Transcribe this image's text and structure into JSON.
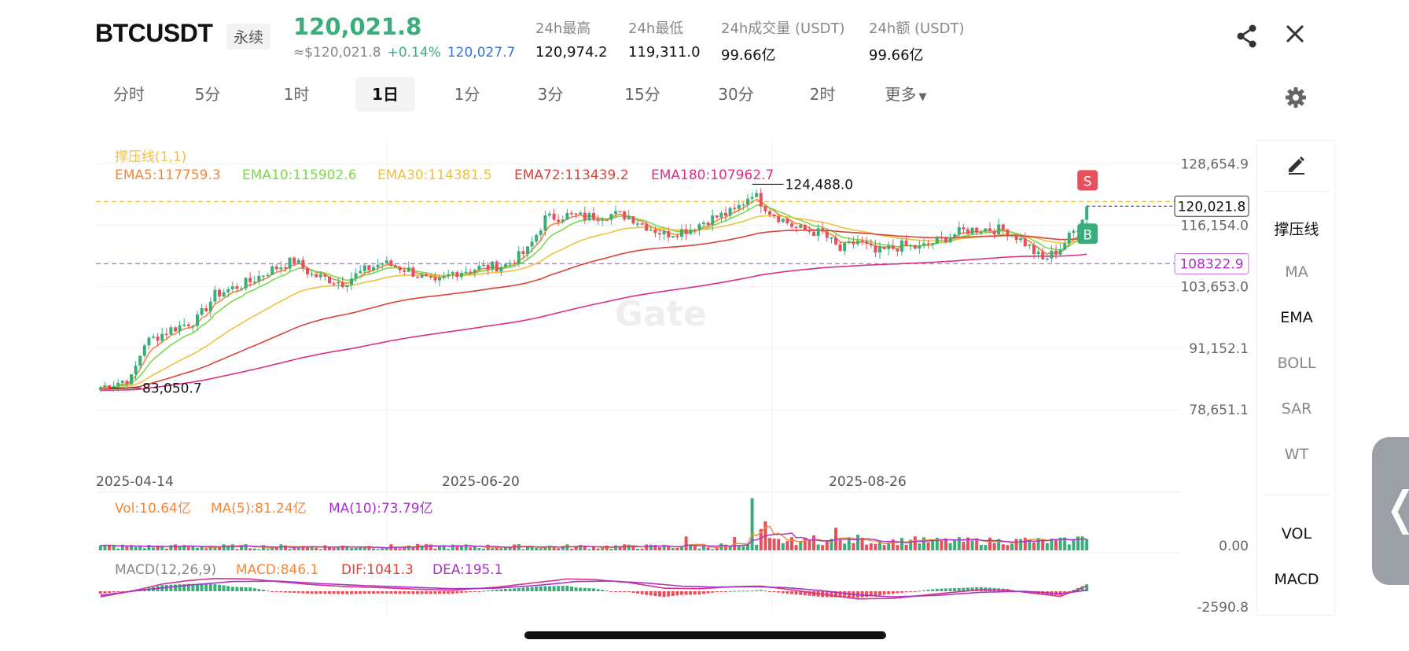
{
  "header": {
    "symbol": "BTCUSDT",
    "contract_type": "永续",
    "last_price": "120,021.8",
    "approx_usd": "≈$120,021.8",
    "change_pct": "+0.14%",
    "mark_price": "120,027.7",
    "stats": [
      {
        "label": "24h最高",
        "value": "120,974.2"
      },
      {
        "label": "24h最低",
        "value": "119,311.0"
      },
      {
        "label": "24h成交量 (USDT)",
        "value": "99.66亿"
      },
      {
        "label": "24h额 (USDT)",
        "value": "99.66亿"
      }
    ]
  },
  "toolbar": {
    "intervals": [
      "分时",
      "5分",
      "1时",
      "1日",
      "1分",
      "3分",
      "15分",
      "30分",
      "2时"
    ],
    "active_interval": "1日",
    "more_label": "更多",
    "icons": [
      "share-icon",
      "close-icon",
      "gear-icon"
    ]
  },
  "side_panel": {
    "items": [
      {
        "label": "撑压线",
        "active": true
      },
      {
        "label": "MA",
        "active": false
      },
      {
        "label": "EMA",
        "active": true
      },
      {
        "label": "BOLL",
        "active": false
      },
      {
        "label": "SAR",
        "active": false
      },
      {
        "label": "WT",
        "active": false
      },
      {
        "label": "VOL",
        "active": true
      },
      {
        "label": "MACD",
        "active": true
      }
    ],
    "edit_icon": "pencil-icon"
  },
  "colors": {
    "up": "#3aae7a",
    "down": "#e8505b",
    "ema5": "#f0883e",
    "ema10": "#7cd94e",
    "ema30": "#f0c040",
    "ema72": "#d9443a",
    "ema180": "#d63384",
    "support_line": "#c96ee8",
    "resistance_line": "#f0c040"
  },
  "chart_data": {
    "type": "candlestick",
    "watermark": "Gate",
    "support_resistance_label": "撑压线(1,1)",
    "ema_legend": [
      {
        "name": "EMA5",
        "value": "117759.3"
      },
      {
        "name": "EMA10",
        "value": "115902.6"
      },
      {
        "name": "EMA30",
        "value": "114381.5"
      },
      {
        "name": "EMA72",
        "value": "113439.2"
      },
      {
        "name": "EMA180",
        "value": "107962.7"
      }
    ],
    "y_ticks": [
      "128,654.9",
      "116,154.0",
      "103,653.0",
      "91,152.1",
      "78,651.1"
    ],
    "y_tick_values": [
      128654.9,
      116154.0,
      103653.0,
      91152.1,
      78651.1
    ],
    "x_ticks": [
      "2025-04-14",
      "2025-06-20",
      "2025-08-26"
    ],
    "ylim": [
      78651.1,
      130300
    ],
    "current_price_label": "120,021.8",
    "current_price": 120021.8,
    "support_price_label": "108322.9",
    "support_price": 108322.9,
    "resistance_price": 120974.2,
    "high_label": "124,488.0",
    "high_value": 124488.0,
    "low_label": "83,050.7",
    "low_value": 83050.7,
    "signals": [
      "S",
      "B"
    ],
    "close_path": [
      [
        0,
        83200
      ],
      [
        7,
        85000
      ],
      [
        10,
        92200
      ],
      [
        16,
        95000
      ],
      [
        22,
        97000
      ],
      [
        26,
        102000
      ],
      [
        34,
        104700
      ],
      [
        38,
        106800
      ],
      [
        44,
        109000
      ],
      [
        48,
        106000
      ],
      [
        55,
        104500
      ],
      [
        60,
        107000
      ],
      [
        64,
        108500
      ],
      [
        70,
        107000
      ],
      [
        76,
        104000
      ],
      [
        80,
        106500
      ],
      [
        86,
        107500
      ],
      [
        92,
        108000
      ],
      [
        97,
        111000
      ],
      [
        101,
        117500
      ],
      [
        106,
        118200
      ],
      [
        110,
        117800
      ],
      [
        116,
        118400
      ],
      [
        120,
        118000
      ],
      [
        124,
        116000
      ],
      [
        128,
        114300
      ],
      [
        134,
        115500
      ],
      [
        138,
        117300
      ],
      [
        144,
        119000
      ],
      [
        148,
        122800
      ],
      [
        152,
        119000
      ],
      [
        158,
        115500
      ],
      [
        164,
        114500
      ],
      [
        168,
        111000
      ],
      [
        172,
        113000
      ],
      [
        176,
        110500
      ],
      [
        182,
        112000
      ],
      [
        186,
        111500
      ],
      [
        190,
        113000
      ],
      [
        196,
        115000
      ],
      [
        200,
        115500
      ],
      [
        206,
        115200
      ],
      [
        210,
        112500
      ],
      [
        214,
        109000
      ],
      [
        218,
        111500
      ],
      [
        222,
        116000
      ],
      [
        224,
        120000
      ]
    ],
    "volume": {
      "legend": [
        {
          "name": "Vol",
          "value": "10.64亿"
        },
        {
          "name": "MA(5)",
          "value": "81.24亿"
        },
        {
          "name": "MA(10)",
          "value": "73.79亿"
        }
      ],
      "y_tick": "0.00",
      "spikes": [
        [
          133,
          2.4
        ],
        [
          141,
          1.2
        ],
        [
          144,
          2.3
        ],
        [
          148,
          9.0
        ],
        [
          150,
          3.7
        ],
        [
          151,
          5.0
        ],
        [
          162,
          2.6
        ],
        [
          167,
          3.9
        ],
        [
          172,
          2.7
        ],
        [
          185,
          2.4
        ],
        [
          210,
          2.2
        ],
        [
          222,
          2.4
        ],
        [
          223,
          2.4
        ]
      ]
    },
    "macd": {
      "legend": [
        {
          "name": "MACD(12,26,9)",
          "value": ""
        },
        {
          "name": "MACD",
          "value": "846.1"
        },
        {
          "name": "DIF",
          "value": "1041.3"
        },
        {
          "name": "DEA",
          "value": "195.1"
        }
      ],
      "y_tick": "-2590.8",
      "dif_path": [
        [
          0,
          -1100
        ],
        [
          8,
          200
        ],
        [
          14,
          1400
        ],
        [
          20,
          2100
        ],
        [
          26,
          2500
        ],
        [
          34,
          2400
        ],
        [
          40,
          1900
        ],
        [
          48,
          1300
        ],
        [
          56,
          900
        ],
        [
          64,
          700
        ],
        [
          72,
          400
        ],
        [
          80,
          200
        ],
        [
          90,
          800
        ],
        [
          100,
          1800
        ],
        [
          106,
          2400
        ],
        [
          112,
          2300
        ],
        [
          120,
          1700
        ],
        [
          128,
          600
        ],
        [
          136,
          500
        ],
        [
          144,
          900
        ],
        [
          150,
          1000
        ],
        [
          156,
          400
        ],
        [
          164,
          -600
        ],
        [
          172,
          -1500
        ],
        [
          180,
          -1400
        ],
        [
          190,
          -500
        ],
        [
          200,
          300
        ],
        [
          206,
          200
        ],
        [
          212,
          -400
        ],
        [
          218,
          -1000
        ],
        [
          224,
          1041
        ]
      ],
      "dea_path": [
        [
          0,
          -800
        ],
        [
          10,
          300
        ],
        [
          20,
          1200
        ],
        [
          30,
          1900
        ],
        [
          40,
          2000
        ],
        [
          50,
          1500
        ],
        [
          60,
          1100
        ],
        [
          70,
          800
        ],
        [
          80,
          500
        ],
        [
          90,
          600
        ],
        [
          100,
          1200
        ],
        [
          108,
          1900
        ],
        [
          116,
          2000
        ],
        [
          124,
          1600
        ],
        [
          132,
          1000
        ],
        [
          140,
          800
        ],
        [
          148,
          900
        ],
        [
          156,
          700
        ],
        [
          164,
          100
        ],
        [
          172,
          -700
        ],
        [
          180,
          -1100
        ],
        [
          190,
          -800
        ],
        [
          200,
          -200
        ],
        [
          210,
          0
        ],
        [
          218,
          -500
        ],
        [
          224,
          195
        ]
      ]
    }
  }
}
